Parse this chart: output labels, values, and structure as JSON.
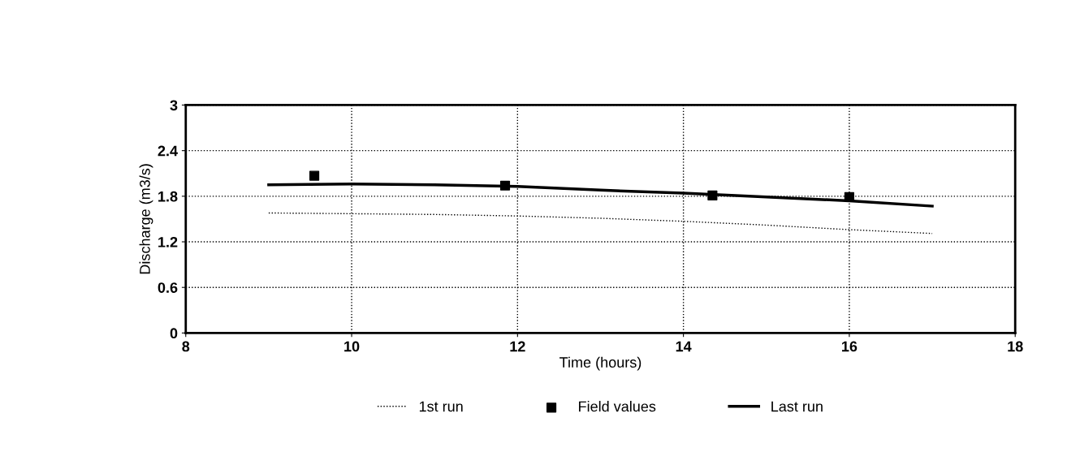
{
  "chart_data": {
    "type": "line",
    "xlabel": "Time (hours)",
    "ylabel": "Discharge (m3/s)",
    "xlim": [
      8,
      18
    ],
    "xticks": [
      8,
      10,
      12,
      14,
      16,
      18
    ],
    "ylim": [
      0,
      3
    ],
    "yticks": [
      0,
      0.6,
      1.2,
      1.8,
      2.4,
      3
    ],
    "grid": true,
    "legend": "bottom",
    "series": [
      {
        "name": "1st run",
        "color": "#000000",
        "line_style": "dotted",
        "marker": "none",
        "x": [
          9,
          10,
          11,
          12,
          13,
          14,
          15,
          16,
          17
        ],
        "values": [
          1.58,
          1.57,
          1.56,
          1.54,
          1.51,
          1.47,
          1.42,
          1.36,
          1.31
        ]
      },
      {
        "name": "Field values",
        "type": "scatter",
        "color": "#000000",
        "marker": "square",
        "x": [
          9.55,
          11.85,
          14.35,
          16.0
        ],
        "values": [
          2.07,
          1.94,
          1.81,
          1.79
        ]
      },
      {
        "name": "Last run",
        "color": "#000000",
        "line_style": "solid",
        "marker": "none",
        "x": [
          9,
          10,
          11,
          12,
          13,
          14,
          15,
          16,
          17
        ],
        "values": [
          1.95,
          1.96,
          1.95,
          1.93,
          1.88,
          1.84,
          1.79,
          1.74,
          1.67
        ]
      }
    ]
  }
}
